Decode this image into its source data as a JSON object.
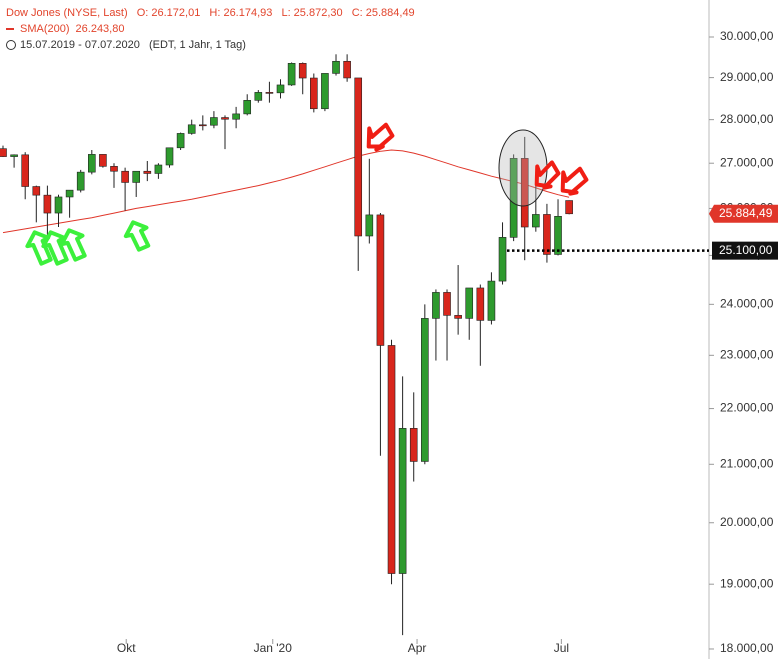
{
  "chart_data": {
    "type": "candlestick",
    "header": {
      "title": "Dow Jones (NYSE, Last)",
      "open": "O: 26.172,01",
      "high": "H: 26.174,93",
      "low": "L: 25.872,30",
      "close": "C: 25.884,49",
      "range": "15.07.2019 - 07.07.2020",
      "info": "(EDT, 1 Jahr, 1 Tag)"
    },
    "up_color": "#2e9a2e",
    "down_color": "#d8261c",
    "open": [
      27330,
      27150,
      27190,
      26480,
      26290,
      25900,
      26250,
      26400,
      26800,
      27200,
      26930,
      26820,
      26570,
      26820,
      26770,
      26960,
      27350,
      27680,
      27880,
      27870,
      28050,
      28010,
      28135,
      28455,
      28645,
      28634,
      28823,
      29348,
      28990,
      28256,
      29102,
      29398,
      28992,
      25409,
      25860,
      23190,
      19170,
      21640,
      21050,
      23720,
      24240,
      23780,
      23720,
      24330,
      23680,
      24470,
      25380,
      27110,
      25600,
      25870,
      25020,
      26172.01
    ],
    "high": [
      27400,
      27200,
      27250,
      26500,
      26500,
      26300,
      26400,
      26850,
      27300,
      27200,
      27000,
      26900,
      26800,
      27050,
      27000,
      27350,
      27700,
      28000,
      28100,
      28200,
      28100,
      28300,
      28600,
      28700,
      28900,
      28960,
      29370,
      29370,
      29100,
      29100,
      29570,
      29570,
      28992,
      27100,
      25900,
      23300,
      22600,
      22300,
      24000,
      24300,
      24300,
      24800,
      24300,
      24400,
      24650,
      25700,
      27200,
      27600,
      26600,
      26100,
      26200,
      26174.93
    ],
    "low": [
      27140,
      26900,
      26200,
      25700,
      25400,
      25600,
      25800,
      26350,
      26750,
      26900,
      26450,
      25950,
      26250,
      26600,
      26650,
      26900,
      27300,
      27650,
      27750,
      27800,
      27320,
      27800,
      28100,
      28400,
      28400,
      28500,
      28800,
      28600,
      28170,
      28200,
      29050,
      28900,
      24680,
      25250,
      21150,
      19000,
      18210,
      20700,
      21000,
      22900,
      22900,
      23400,
      23300,
      22800,
      23600,
      24400,
      25300,
      24900,
      25500,
      24850,
      25000,
      25872.3
    ],
    "close": [
      27150,
      27190,
      26480,
      26290,
      25900,
      26250,
      26400,
      26800,
      27200,
      26930,
      26820,
      26570,
      26820,
      26770,
      26960,
      27350,
      27680,
      27880,
      27870,
      28050,
      28010,
      28135,
      28455,
      28645,
      28634,
      28823,
      29348,
      28990,
      28256,
      29102,
      29398,
      28992,
      25409,
      25860,
      23190,
      19170,
      21640,
      21050,
      23720,
      24240,
      23780,
      23720,
      24330,
      23680,
      24470,
      25380,
      27110,
      25600,
      25870,
      25020,
      25830,
      25884.49
    ],
    "sma": {
      "name": "SMA(200)",
      "value_label": "26.243,80",
      "color": "#e0362a",
      "values": [
        25480,
        25520,
        25560,
        25600,
        25640,
        25680,
        25720,
        25760,
        25800,
        25850,
        25900,
        25950,
        26000,
        26040,
        26080,
        26120,
        26160,
        26200,
        26250,
        26300,
        26350,
        26400,
        26450,
        26500,
        26560,
        26620,
        26690,
        26760,
        26840,
        26920,
        27000,
        27080,
        27160,
        27220,
        27270,
        27300,
        27280,
        27230,
        27160,
        27080,
        27000,
        26920,
        26850,
        26780,
        26710,
        26650,
        26590,
        26530,
        26450,
        26370,
        26300,
        26244
      ]
    },
    "xlim": [
      -0.27,
      63.6
    ],
    "xticks": [
      {
        "value": 11.1,
        "label": "Okt"
      },
      {
        "value": 24.3,
        "label": "Jan '20"
      },
      {
        "value": 37.3,
        "label": "Apr"
      },
      {
        "value": 50.3,
        "label": "Jul"
      }
    ],
    "ylim": [
      17850,
      30941
    ],
    "log_scale": true,
    "yticks": [
      {
        "value": 18000,
        "label": "18.000,00"
      },
      {
        "value": 19000,
        "label": "19.000,00"
      },
      {
        "value": 20000,
        "label": "20.000,00"
      },
      {
        "value": 21000,
        "label": "21.000,00"
      },
      {
        "value": 22000,
        "label": "22.000,00"
      },
      {
        "value": 23000,
        "label": "23.000,00"
      },
      {
        "value": 24000,
        "label": "24.000,00"
      },
      {
        "value": 25000,
        "label": "25.000,00"
      },
      {
        "value": 26000,
        "label": "26.000,00"
      },
      {
        "value": 27000,
        "label": "27.000,00"
      },
      {
        "value": 28000,
        "label": "28.000,00"
      },
      {
        "value": 29000,
        "label": "29.000,00"
      },
      {
        "value": 30000,
        "label": "30.000,00"
      }
    ],
    "price_tag": {
      "value": 25884.49,
      "label": "25.884,49",
      "color": "#e0362a"
    },
    "level": {
      "value": 25100,
      "label": "25.100,00"
    }
  }
}
